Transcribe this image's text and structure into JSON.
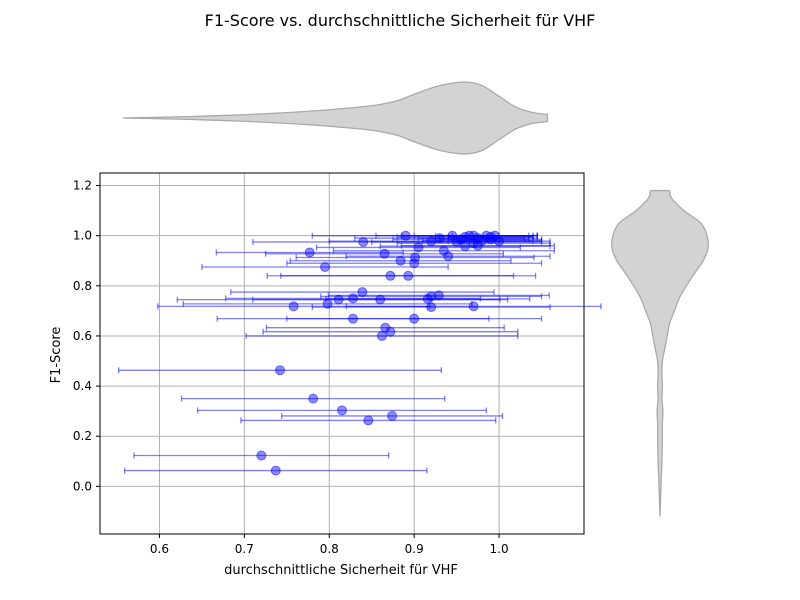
{
  "chart_data": {
    "type": "scatter",
    "title": "F1-Score vs. durchschnittliche Sicherheit für VHF",
    "xlabel": "durchschnittliche Sicherheit für VHF",
    "ylabel": "F1-Score",
    "xlim": [
      0.53,
      1.1
    ],
    "ylim": [
      -0.19,
      1.25
    ],
    "xticks": [
      "0.6",
      "0.7",
      "0.8",
      "0.9",
      "1.0"
    ],
    "yticks": [
      "0.0",
      "0.2",
      "0.4",
      "0.6",
      "0.8",
      "1.0",
      "1.2"
    ],
    "grid": true,
    "colors": {
      "points": "#0000ff",
      "violin_fill": "#d3d3d3",
      "violin_edge": "#a9a9a9",
      "grid": "#b0b0b0"
    },
    "points": [
      {
        "x": 0.737,
        "y": 0.063,
        "err": 0.178
      },
      {
        "x": 0.72,
        "y": 0.123,
        "err": 0.15
      },
      {
        "x": 0.846,
        "y": 0.263,
        "err": 0.15
      },
      {
        "x": 0.874,
        "y": 0.281,
        "err": 0.13
      },
      {
        "x": 0.815,
        "y": 0.303,
        "err": 0.17
      },
      {
        "x": 0.781,
        "y": 0.35,
        "err": 0.155
      },
      {
        "x": 0.742,
        "y": 0.463,
        "err": 0.19
      },
      {
        "x": 0.862,
        "y": 0.6,
        "err": 0.16
      },
      {
        "x": 0.872,
        "y": 0.617,
        "err": 0.15
      },
      {
        "x": 0.866,
        "y": 0.633,
        "err": 0.14
      },
      {
        "x": 0.828,
        "y": 0.669,
        "err": 0.16
      },
      {
        "x": 0.9,
        "y": 0.669,
        "err": 0.15
      },
      {
        "x": 0.758,
        "y": 0.718,
        "err": 0.16
      },
      {
        "x": 0.798,
        "y": 0.728,
        "err": 0.17
      },
      {
        "x": 0.92,
        "y": 0.715,
        "err": 0.14
      },
      {
        "x": 0.97,
        "y": 0.718,
        "err": 0.15
      },
      {
        "x": 0.811,
        "y": 0.745,
        "err": 0.19
      },
      {
        "x": 0.828,
        "y": 0.75,
        "err": 0.15
      },
      {
        "x": 0.86,
        "y": 0.745,
        "err": 0.15
      },
      {
        "x": 0.916,
        "y": 0.748,
        "err": 0.12
      },
      {
        "x": 0.92,
        "y": 0.758,
        "err": 0.13
      },
      {
        "x": 0.929,
        "y": 0.762,
        "err": 0.13
      },
      {
        "x": 0.839,
        "y": 0.775,
        "err": 0.155
      },
      {
        "x": 0.872,
        "y": 0.84,
        "err": 0.145
      },
      {
        "x": 0.893,
        "y": 0.84,
        "err": 0.15
      },
      {
        "x": 0.795,
        "y": 0.875,
        "err": 0.145
      },
      {
        "x": 0.9,
        "y": 0.89,
        "err": 0.15
      },
      {
        "x": 0.884,
        "y": 0.9,
        "err": 0.13
      },
      {
        "x": 0.901,
        "y": 0.913,
        "err": 0.14
      },
      {
        "x": 0.94,
        "y": 0.918,
        "err": 0.12
      },
      {
        "x": 0.777,
        "y": 0.933,
        "err": 0.11
      },
      {
        "x": 0.865,
        "y": 0.928,
        "err": 0.14
      },
      {
        "x": 0.935,
        "y": 0.94,
        "err": 0.13
      },
      {
        "x": 0.905,
        "y": 0.953,
        "err": 0.12
      },
      {
        "x": 0.96,
        "y": 0.958,
        "err": 0.1
      },
      {
        "x": 0.975,
        "y": 0.96,
        "err": 0.09
      },
      {
        "x": 0.84,
        "y": 0.975,
        "err": 0.13
      },
      {
        "x": 0.92,
        "y": 0.978,
        "err": 0.12
      },
      {
        "x": 0.95,
        "y": 0.975,
        "err": 0.1
      },
      {
        "x": 0.97,
        "y": 0.97,
        "err": 0.09
      },
      {
        "x": 0.98,
        "y": 0.98,
        "err": 0.07
      },
      {
        "x": 0.99,
        "y": 0.985,
        "err": 0.06
      },
      {
        "x": 1.0,
        "y": 0.978,
        "err": 0.06
      },
      {
        "x": 0.93,
        "y": 0.99,
        "err": 0.1
      },
      {
        "x": 0.96,
        "y": 0.995,
        "err": 0.08
      },
      {
        "x": 0.89,
        "y": 1.0,
        "err": 0.11
      },
      {
        "x": 0.945,
        "y": 1.0,
        "err": 0.09
      },
      {
        "x": 0.97,
        "y": 1.0,
        "err": 0.07
      },
      {
        "x": 0.985,
        "y": 1.0,
        "err": 0.06
      },
      {
        "x": 0.995,
        "y": 1.0,
        "err": 0.05
      },
      {
        "x": 0.975,
        "y": 0.99,
        "err": 0.07
      },
      {
        "x": 0.955,
        "y": 0.985,
        "err": 0.08
      },
      {
        "x": 0.99,
        "y": 0.995,
        "err": 0.05
      },
      {
        "x": 0.965,
        "y": 1.0,
        "err": 0.08
      }
    ],
    "x_distribution": [
      {
        "v": 0.557,
        "w": 0.0
      },
      {
        "v": 0.6,
        "w": 0.02
      },
      {
        "v": 0.65,
        "w": 0.05
      },
      {
        "v": 0.7,
        "w": 0.09
      },
      {
        "v": 0.75,
        "w": 0.15
      },
      {
        "v": 0.8,
        "w": 0.23
      },
      {
        "v": 0.85,
        "w": 0.34
      },
      {
        "v": 0.88,
        "w": 0.48
      },
      {
        "v": 0.9,
        "w": 0.66
      },
      {
        "v": 0.93,
        "w": 0.9
      },
      {
        "v": 0.96,
        "w": 1.0
      },
      {
        "v": 0.98,
        "w": 0.9
      },
      {
        "v": 1.0,
        "w": 0.6
      },
      {
        "v": 1.02,
        "w": 0.3
      },
      {
        "v": 1.04,
        "w": 0.15
      },
      {
        "v": 1.057,
        "w": 0.1
      }
    ],
    "y_distribution": [
      {
        "v": -0.12,
        "w": 0.0
      },
      {
        "v": 0.0,
        "w": 0.02
      },
      {
        "v": 0.1,
        "w": 0.04
      },
      {
        "v": 0.2,
        "w": 0.05
      },
      {
        "v": 0.25,
        "w": 0.05
      },
      {
        "v": 0.3,
        "w": 0.06
      },
      {
        "v": 0.35,
        "w": 0.04
      },
      {
        "v": 0.4,
        "w": 0.05
      },
      {
        "v": 0.45,
        "w": 0.04
      },
      {
        "v": 0.5,
        "w": 0.05
      },
      {
        "v": 0.55,
        "w": 0.1
      },
      {
        "v": 0.6,
        "w": 0.15
      },
      {
        "v": 0.65,
        "w": 0.2
      },
      {
        "v": 0.7,
        "w": 0.3
      },
      {
        "v": 0.75,
        "w": 0.4
      },
      {
        "v": 0.8,
        "w": 0.55
      },
      {
        "v": 0.85,
        "w": 0.72
      },
      {
        "v": 0.9,
        "w": 0.9
      },
      {
        "v": 0.95,
        "w": 1.0
      },
      {
        "v": 1.0,
        "w": 0.98
      },
      {
        "v": 1.05,
        "w": 0.85
      },
      {
        "v": 1.1,
        "w": 0.5
      },
      {
        "v": 1.15,
        "w": 0.24
      },
      {
        "v": 1.18,
        "w": 0.2
      }
    ]
  }
}
